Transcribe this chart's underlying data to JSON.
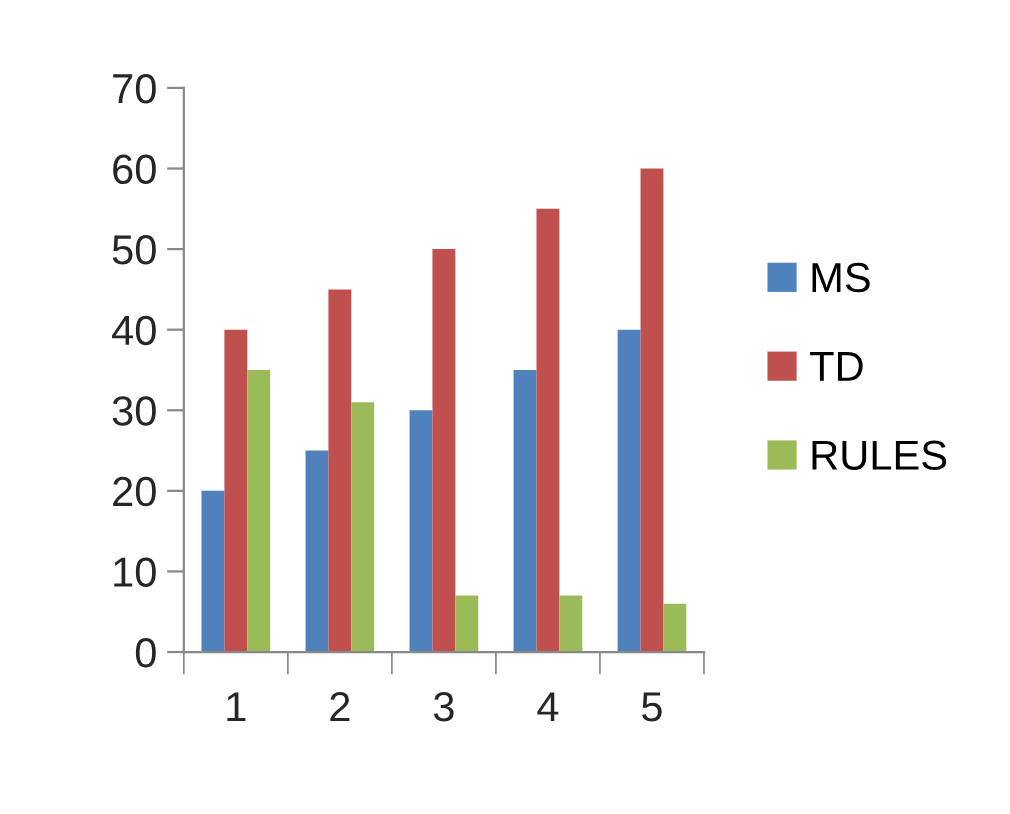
{
  "chart_data": {
    "type": "bar",
    "categories": [
      "1",
      "2",
      "3",
      "4",
      "5"
    ],
    "series": [
      {
        "name": "MS",
        "color": "#4f81bd",
        "values": [
          20,
          25,
          30,
          35,
          40
        ]
      },
      {
        "name": "TD",
        "color": "#c0504d",
        "values": [
          40,
          45,
          50,
          55,
          60
        ]
      },
      {
        "name": "RULES",
        "color": "#9bbb59",
        "values": [
          35,
          31,
          7,
          7,
          6
        ]
      }
    ],
    "ylim": [
      0,
      70
    ],
    "yticks": [
      0,
      10,
      20,
      30,
      40,
      50,
      60,
      70
    ],
    "grid": false,
    "legend": "right"
  }
}
